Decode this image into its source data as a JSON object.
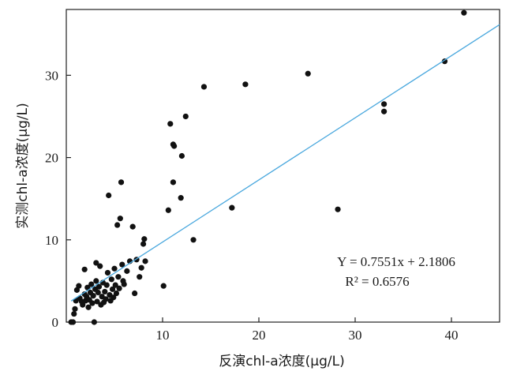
{
  "chart_data": {
    "type": "scatter",
    "title": "",
    "xlabel": "反演chl-a浓度(μg/L)",
    "ylabel": "实测chl-a浓度(μg/L)",
    "xlim": [
      0,
      45
    ],
    "ylim": [
      0,
      38
    ],
    "xticks": [
      10,
      20,
      30,
      40
    ],
    "yticks": [
      0,
      10,
      20,
      30
    ],
    "grid": false,
    "fit_line": {
      "slope": 0.7551,
      "intercept": 2.1806,
      "color": "#4aa8de",
      "x_range": [
        0.5,
        45
      ]
    },
    "annotation": {
      "equation": "Y = 0.7551x + 2.1806",
      "r2": "R² = 0.6576"
    },
    "point_color": "#111111",
    "points": [
      [
        0.5,
        0.0
      ],
      [
        0.7,
        0.0
      ],
      [
        0.8,
        1.0
      ],
      [
        0.9,
        1.6
      ],
      [
        1.0,
        2.6
      ],
      [
        1.1,
        3.9
      ],
      [
        1.3,
        4.4
      ],
      [
        1.4,
        2.9
      ],
      [
        1.6,
        2.5
      ],
      [
        1.7,
        2.1
      ],
      [
        1.9,
        3.4
      ],
      [
        1.9,
        6.4
      ],
      [
        2.0,
        2.6
      ],
      [
        2.1,
        3.1
      ],
      [
        2.2,
        4.2
      ],
      [
        2.3,
        1.8
      ],
      [
        2.4,
        2.7
      ],
      [
        2.5,
        3.6
      ],
      [
        2.6,
        4.6
      ],
      [
        2.7,
        2.3
      ],
      [
        2.8,
        3.2
      ],
      [
        2.9,
        0.0
      ],
      [
        3.0,
        4.0
      ],
      [
        3.1,
        5.0
      ],
      [
        3.1,
        7.2
      ],
      [
        3.2,
        2.5
      ],
      [
        3.3,
        3.6
      ],
      [
        3.4,
        4.3
      ],
      [
        3.5,
        6.8
      ],
      [
        3.6,
        2.1
      ],
      [
        3.7,
        3.1
      ],
      [
        3.8,
        4.8
      ],
      [
        3.9,
        2.4
      ],
      [
        4.0,
        3.7
      ],
      [
        4.1,
        2.8
      ],
      [
        4.2,
        4.5
      ],
      [
        4.3,
        6.0
      ],
      [
        4.4,
        15.4
      ],
      [
        4.5,
        3.3
      ],
      [
        4.6,
        2.6
      ],
      [
        4.7,
        5.2
      ],
      [
        4.8,
        4.0
      ],
      [
        4.9,
        3.0
      ],
      [
        5.0,
        6.5
      ],
      [
        5.1,
        4.5
      ],
      [
        5.2,
        3.5
      ],
      [
        5.3,
        11.8
      ],
      [
        5.4,
        5.5
      ],
      [
        5.5,
        4.1
      ],
      [
        5.6,
        12.6
      ],
      [
        5.7,
        17.0
      ],
      [
        5.8,
        7.0
      ],
      [
        5.9,
        5.0
      ],
      [
        6.0,
        4.6
      ],
      [
        6.3,
        6.2
      ],
      [
        6.6,
        7.4
      ],
      [
        6.9,
        11.6
      ],
      [
        7.1,
        3.5
      ],
      [
        7.3,
        7.6
      ],
      [
        7.6,
        5.5
      ],
      [
        7.8,
        6.6
      ],
      [
        8.0,
        9.5
      ],
      [
        8.1,
        10.1
      ],
      [
        8.2,
        7.4
      ],
      [
        10.1,
        4.4
      ],
      [
        10.6,
        13.6
      ],
      [
        10.8,
        24.1
      ],
      [
        11.1,
        21.6
      ],
      [
        11.2,
        21.4
      ],
      [
        11.1,
        17.0
      ],
      [
        11.9,
        15.1
      ],
      [
        12.0,
        20.2
      ],
      [
        12.4,
        25.0
      ],
      [
        13.2,
        10.0
      ],
      [
        14.3,
        28.6
      ],
      [
        17.2,
        13.9
      ],
      [
        18.6,
        28.9
      ],
      [
        25.1,
        30.2
      ],
      [
        28.2,
        13.7
      ],
      [
        33.0,
        26.5
      ],
      [
        33.0,
        25.6
      ],
      [
        39.3,
        31.7
      ],
      [
        41.3,
        37.6
      ]
    ]
  }
}
